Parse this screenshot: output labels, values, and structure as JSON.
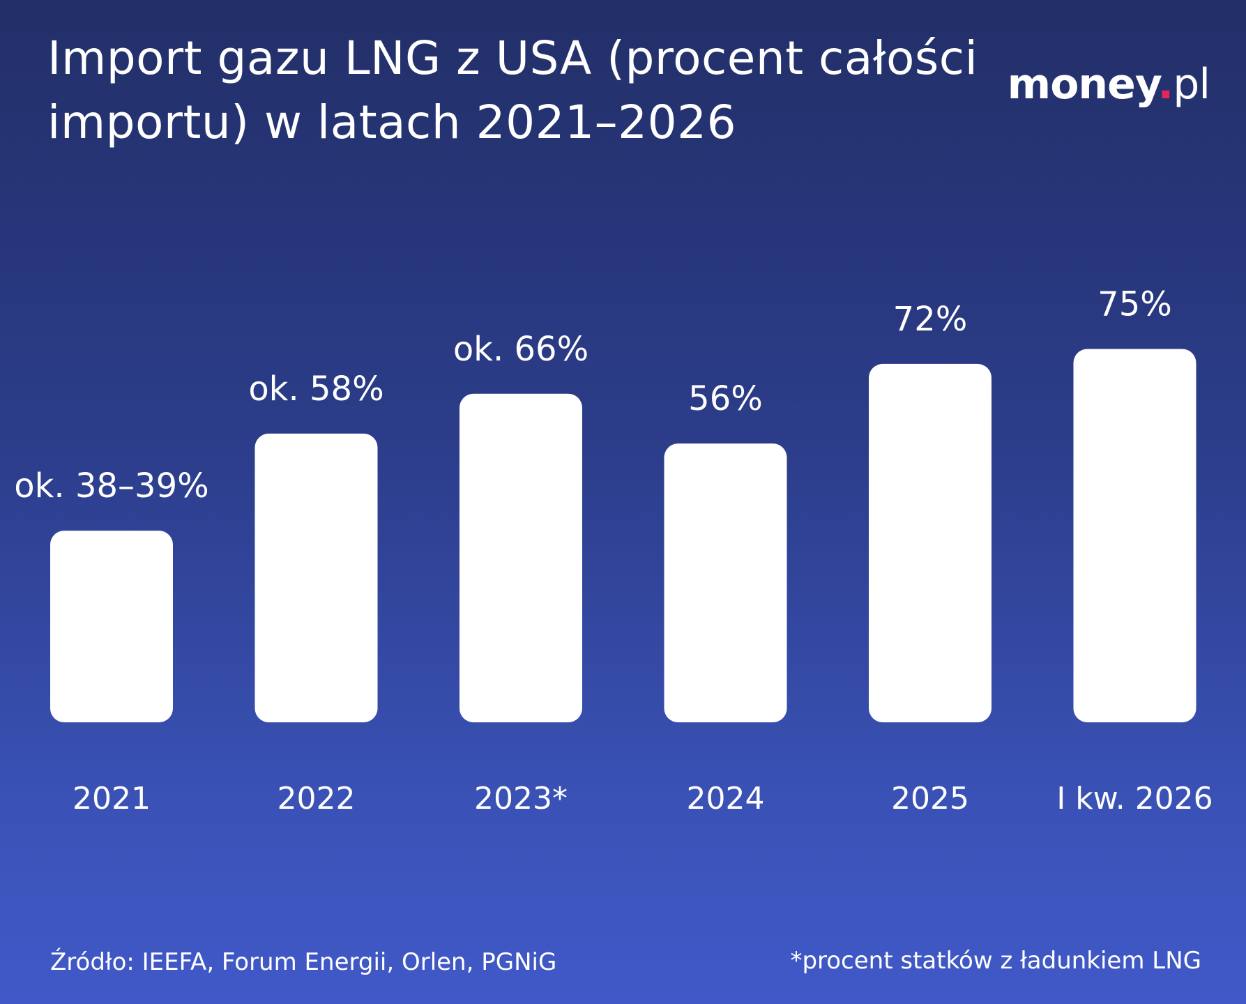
{
  "title": "Import gazu LNG z USA (procent całości importu) w latach 2021–2026",
  "logo": {
    "word": "money",
    "dot": ".",
    "tld": "pl",
    "dot_color": "#e2265c"
  },
  "source": "Źródło: IEEFA, Forum Energii, Orlen, PGNiG",
  "footnote": "*procent statków z ładunkiem LNG",
  "colors": {
    "bar": "#ffffff",
    "background_top": "#222f68",
    "background_bottom": "#4159c8"
  },
  "chart_data": {
    "type": "bar",
    "categories": [
      "2021",
      "2022",
      "2023*",
      "2024",
      "2025",
      "I kw. 2026"
    ],
    "values": [
      38.5,
      58,
      66,
      56,
      72,
      75
    ],
    "value_labels": [
      "ok. 38–39%",
      "ok. 58%",
      "ok. 66%",
      "56%",
      "72%",
      "75%"
    ],
    "title": "Import gazu LNG z USA (procent całości importu) w latach 2021–2026",
    "xlabel": "",
    "ylabel": "",
    "ylim": [
      0,
      100
    ],
    "grid": false,
    "legend": "none"
  }
}
